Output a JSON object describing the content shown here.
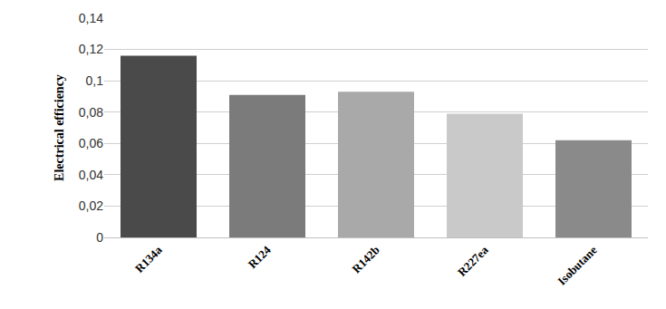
{
  "chart_data": {
    "type": "bar",
    "y_label": "Electrical efficiency",
    "categories": [
      "R134a",
      "R124",
      "R142b",
      "R227ea",
      "Isobutane"
    ],
    "values": [
      0.116,
      0.091,
      0.093,
      0.079,
      0.062
    ],
    "colors": [
      "#4a4a4a",
      "#7b7b7b",
      "#a9a9a9",
      "#c9c9c9",
      "#8a8a8a"
    ],
    "ylim": [
      0,
      0.14
    ],
    "yticks": [
      0,
      {
        "value": 0.02,
        "label": "0,02"
      },
      {
        "value": 0.04,
        "label": "0,04"
      },
      {
        "value": 0.06,
        "label": "0,06"
      },
      {
        "value": 0.08,
        "label": "0,08"
      },
      {
        "value": 0.1,
        "label": "0,1"
      },
      {
        "value": 0.12,
        "label": "0,12"
      },
      {
        "value": 0.14,
        "label": "0,14"
      }
    ],
    "grid": true
  }
}
